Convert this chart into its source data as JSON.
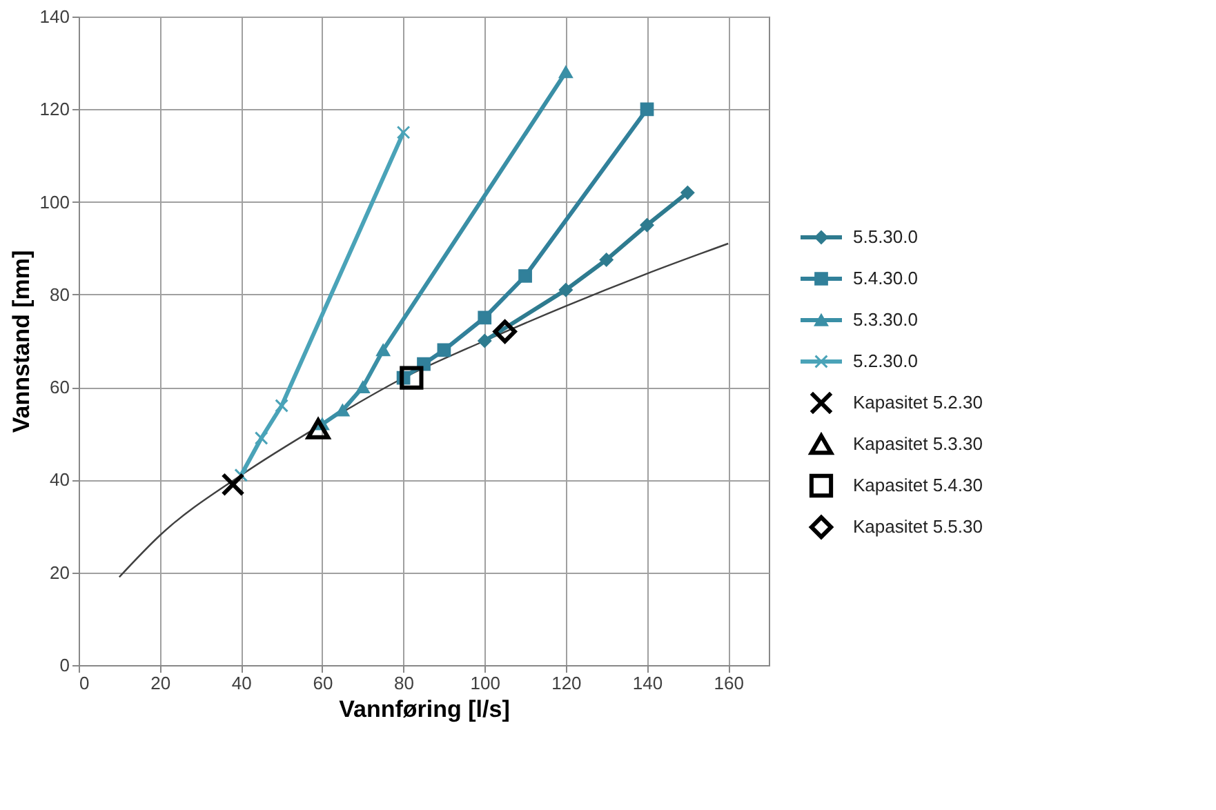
{
  "chart_data": {
    "type": "line",
    "xlabel": "Vannføring [l/s]",
    "ylabel": "Vannstand [mm]",
    "xlim": [
      0,
      170
    ],
    "xticks": [
      0,
      20,
      40,
      60,
      80,
      100,
      120,
      140,
      160
    ],
    "ylim": [
      0,
      140
    ],
    "yticks": [
      0,
      20,
      40,
      60,
      80,
      100,
      120,
      140
    ],
    "grid": true,
    "legend": "right",
    "series": [
      {
        "name": "5.5.30.0",
        "marker": "diamond",
        "color": "#2e7b8f",
        "x": [
          100,
          120,
          130,
          140,
          150
        ],
        "values": [
          70,
          81,
          87.5,
          95,
          102
        ]
      },
      {
        "name": "5.4.30.0",
        "marker": "square",
        "color": "#31809a",
        "x": [
          80,
          85,
          90,
          100,
          110,
          140
        ],
        "values": [
          62,
          65,
          68,
          75,
          84,
          120
        ]
      },
      {
        "name": "5.3.30.0",
        "marker": "triangle",
        "color": "#3a8fa6",
        "x": [
          60,
          65,
          70,
          75,
          120
        ],
        "values": [
          52,
          55,
          60,
          68,
          128
        ]
      },
      {
        "name": "5.2.30.0",
        "marker": "cross",
        "color": "#4aa3b8",
        "x": [
          40,
          45,
          50,
          80
        ],
        "values": [
          41,
          49,
          56,
          115
        ]
      },
      {
        "name": "Kapasitet 5.2.30",
        "type": "scatter",
        "marker": "cross",
        "color": "#000000",
        "x": [
          38
        ],
        "values": [
          39
        ]
      },
      {
        "name": "Kapasitet 5.3.30",
        "type": "scatter",
        "marker": "triangle",
        "color": "#000000",
        "x": [
          59
        ],
        "values": [
          51
        ]
      },
      {
        "name": "Kapasitet 5.4.30",
        "type": "scatter",
        "marker": "square",
        "color": "#000000",
        "x": [
          82
        ],
        "values": [
          62
        ]
      },
      {
        "name": "Kapasitet 5.5.30",
        "type": "scatter",
        "marker": "diamond",
        "color": "#000000",
        "x": [
          105
        ],
        "values": [
          72
        ]
      },
      {
        "marker": "none",
        "color": "#404040",
        "x": [
          10,
          20,
          40,
          60,
          80,
          100,
          120,
          140,
          160
        ],
        "values": [
          19,
          28,
          41,
          52,
          62,
          70,
          77.5,
          84.5,
          91
        ]
      }
    ]
  }
}
